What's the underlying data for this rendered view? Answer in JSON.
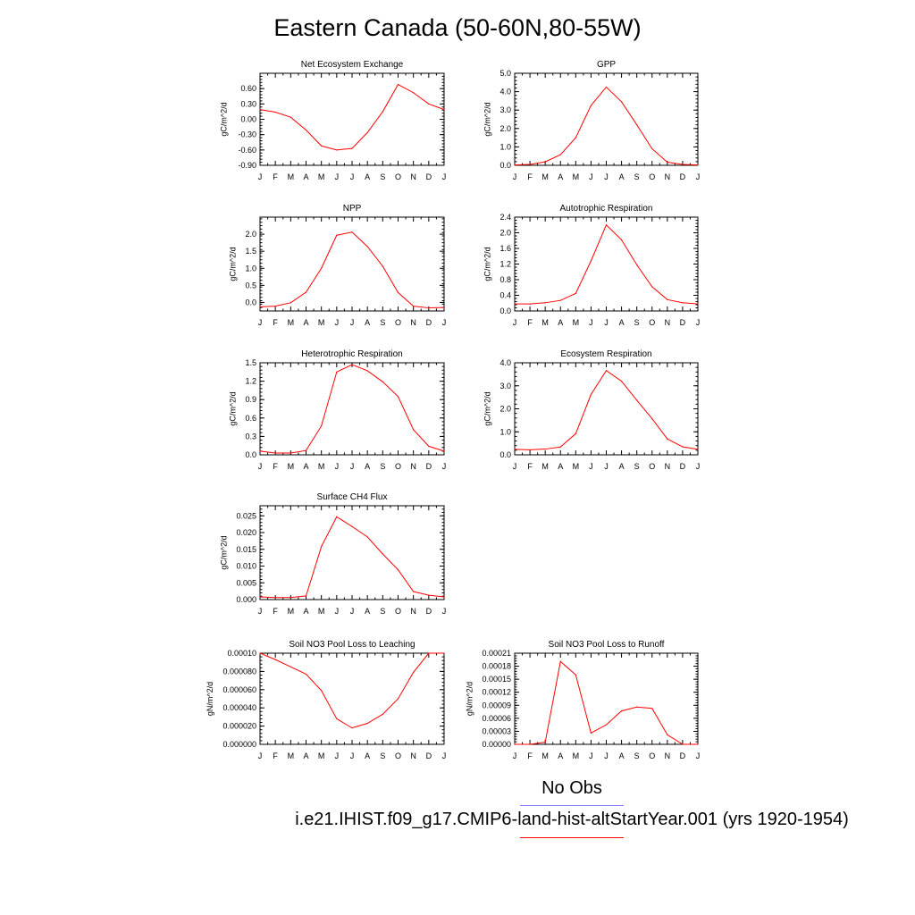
{
  "title": "Eastern Canada (50-60N,80-55W)",
  "legend": {
    "obs_label": "No Obs",
    "obs_color": "#8080ff",
    "model_label": "i.e21.IHIST.f09_g17.CMIP6-land-hist-altStartYear.001 (yrs 1920-1954)",
    "model_color": "#ff0000"
  },
  "line_color": "#ff0000",
  "chart_data": [
    {
      "type": "line",
      "title": "Net Ecosystem Exchange",
      "ylabel": "gC/m^2/d",
      "xticks": [
        "J",
        "F",
        "M",
        "A",
        "M",
        "J",
        "J",
        "A",
        "S",
        "O",
        "N",
        "D",
        "J"
      ],
      "yticks": [
        -0.9,
        -0.6,
        -0.3,
        0.0,
        0.3,
        0.6
      ],
      "ytick_labels": [
        "-0.90",
        "-0.60",
        "-0.30",
        "0.00",
        "0.30",
        "0.60"
      ],
      "ylim": [
        -0.9,
        0.9
      ],
      "series": [
        {
          "values": [
            0.19,
            0.14,
            0.04,
            -0.21,
            -0.52,
            -0.6,
            -0.57,
            -0.26,
            0.15,
            0.68,
            0.52,
            0.3,
            0.19
          ]
        }
      ]
    },
    {
      "type": "line",
      "title": "GPP",
      "ylabel": "gC/m^2/d",
      "xticks": [
        "J",
        "F",
        "M",
        "A",
        "M",
        "J",
        "J",
        "A",
        "S",
        "O",
        "N",
        "D",
        "J"
      ],
      "yticks": [
        0,
        1,
        2,
        3,
        4,
        5
      ],
      "ytick_labels": [
        "0.0",
        "1.0",
        "2.0",
        "3.0",
        "4.0",
        "5.0"
      ],
      "ylim": [
        0,
        5
      ],
      "series": [
        {
          "values": [
            0.02,
            0.05,
            0.19,
            0.58,
            1.5,
            3.25,
            4.25,
            3.45,
            2.2,
            0.9,
            0.17,
            0.05,
            0.02
          ]
        }
      ]
    },
    {
      "type": "line",
      "title": "NPP",
      "ylabel": "gC/m^2/d",
      "xticks": [
        "J",
        "F",
        "M",
        "A",
        "M",
        "J",
        "J",
        "A",
        "S",
        "O",
        "N",
        "D",
        "J"
      ],
      "yticks": [
        0,
        0.5,
        1,
        1.5,
        2
      ],
      "ytick_labels": [
        "0.0",
        "0.5",
        "1.0",
        "1.5",
        "2.0"
      ],
      "ylim": [
        -0.25,
        2.5
      ],
      "series": [
        {
          "values": [
            -0.13,
            -0.11,
            -0.01,
            0.3,
            1.0,
            1.97,
            2.06,
            1.64,
            1.06,
            0.29,
            -0.11,
            -0.16,
            -0.15
          ]
        }
      ]
    },
    {
      "type": "line",
      "title": "Autotrophic Respiration",
      "ylabel": "gC/m^2/d",
      "xticks": [
        "J",
        "F",
        "M",
        "A",
        "M",
        "J",
        "J",
        "A",
        "S",
        "O",
        "N",
        "D",
        "J"
      ],
      "yticks": [
        0,
        0.4,
        0.8,
        1.2,
        1.6,
        2.0,
        2.4
      ],
      "ytick_labels": [
        "0.0",
        "0.4",
        "0.8",
        "1.2",
        "1.6",
        "2.0",
        "2.4"
      ],
      "ylim": [
        0,
        2.4
      ],
      "series": [
        {
          "values": [
            0.18,
            0.18,
            0.21,
            0.27,
            0.45,
            1.28,
            2.2,
            1.82,
            1.18,
            0.62,
            0.29,
            0.21,
            0.18
          ]
        }
      ]
    },
    {
      "type": "line",
      "title": "Heterotrophic Respiration",
      "ylabel": "gC/m^2/d",
      "xticks": [
        "J",
        "F",
        "M",
        "A",
        "M",
        "J",
        "J",
        "A",
        "S",
        "O",
        "N",
        "D",
        "J"
      ],
      "yticks": [
        0,
        0.3,
        0.6,
        0.9,
        1.2,
        1.5
      ],
      "ytick_labels": [
        "0.0",
        "0.3",
        "0.6",
        "0.9",
        "1.2",
        "1.5"
      ],
      "ylim": [
        0,
        1.5
      ],
      "series": [
        {
          "values": [
            0.06,
            0.03,
            0.03,
            0.07,
            0.47,
            1.35,
            1.47,
            1.37,
            1.19,
            0.95,
            0.41,
            0.14,
            0.06
          ]
        }
      ]
    },
    {
      "type": "line",
      "title": "Ecosystem Respiration",
      "ylabel": "gC/m^2/d",
      "xticks": [
        "J",
        "F",
        "M",
        "A",
        "M",
        "J",
        "J",
        "A",
        "S",
        "O",
        "N",
        "D",
        "J"
      ],
      "yticks": [
        0,
        1,
        2,
        3,
        4
      ],
      "ytick_labels": [
        "0.0",
        "1.0",
        "2.0",
        "3.0",
        "4.0"
      ],
      "ylim": [
        0,
        4
      ],
      "series": [
        {
          "values": [
            0.24,
            0.22,
            0.25,
            0.34,
            0.92,
            2.62,
            3.66,
            3.2,
            2.37,
            1.57,
            0.69,
            0.35,
            0.24
          ]
        }
      ]
    },
    {
      "type": "line",
      "title": "Surface CH4 Flux",
      "ylabel": "gC/m^2/d",
      "xticks": [
        "J",
        "F",
        "M",
        "A",
        "M",
        "J",
        "J",
        "A",
        "S",
        "O",
        "N",
        "D",
        "J"
      ],
      "yticks": [
        0,
        0.005,
        0.01,
        0.015,
        0.02,
        0.025
      ],
      "ytick_labels": [
        "0.000",
        "0.005",
        "0.010",
        "0.015",
        "0.020",
        "0.025"
      ],
      "ylim": [
        0,
        0.028
      ],
      "series": [
        {
          "values": [
            0.0008,
            0.0006,
            0.0006,
            0.0011,
            0.0158,
            0.0247,
            0.0218,
            0.0187,
            0.0136,
            0.0089,
            0.0024,
            0.0013,
            0.0008
          ]
        }
      ]
    },
    {
      "type": "line",
      "title": "Soil NO3 Pool Loss to Leaching",
      "ylabel": "gN/m^2/d",
      "xticks": [
        "J",
        "F",
        "M",
        "A",
        "M",
        "J",
        "J",
        "A",
        "S",
        "O",
        "N",
        "D",
        "J"
      ],
      "yticks": [
        0,
        2e-05,
        4e-05,
        6e-05,
        8e-05,
        0.0001
      ],
      "ytick_labels": [
        "0.000000",
        "0.000020",
        "0.000040",
        "0.000060",
        "0.000080",
        "0.00010"
      ],
      "ylim": [
        0,
        0.0001
      ],
      "series": [
        {
          "values": [
            0.0001,
            9.3e-05,
            8.5e-05,
            7.7e-05,
            5.9e-05,
            2.8e-05,
            1.8e-05,
            2.3e-05,
            3.3e-05,
            5e-05,
            7.9e-05,
            0.0001,
            0.0001
          ]
        }
      ]
    },
    {
      "type": "line",
      "title": "Soil NO3 Pool Loss to Runoff",
      "ylabel": "gN/m^2/d",
      "xticks": [
        "J",
        "F",
        "M",
        "A",
        "M",
        "J",
        "J",
        "A",
        "S",
        "O",
        "N",
        "D",
        "J"
      ],
      "yticks": [
        0,
        3e-05,
        6e-05,
        9e-05,
        0.00012,
        0.00015,
        0.00018,
        0.00021
      ],
      "ytick_labels": [
        "0.00000",
        "0.00003",
        "0.00006",
        "0.00009",
        "0.00012",
        "0.00015",
        "0.00018",
        "0.00021"
      ],
      "ylim": [
        0,
        0.00021
      ],
      "series": [
        {
          "values": [
            0.0,
            0.0,
            5e-06,
            0.000191,
            0.00016,
            2.6e-05,
            4.5e-05,
            7.7e-05,
            8.6e-05,
            8.3e-05,
            2.2e-05,
            0.0,
            0.0
          ]
        }
      ]
    }
  ]
}
